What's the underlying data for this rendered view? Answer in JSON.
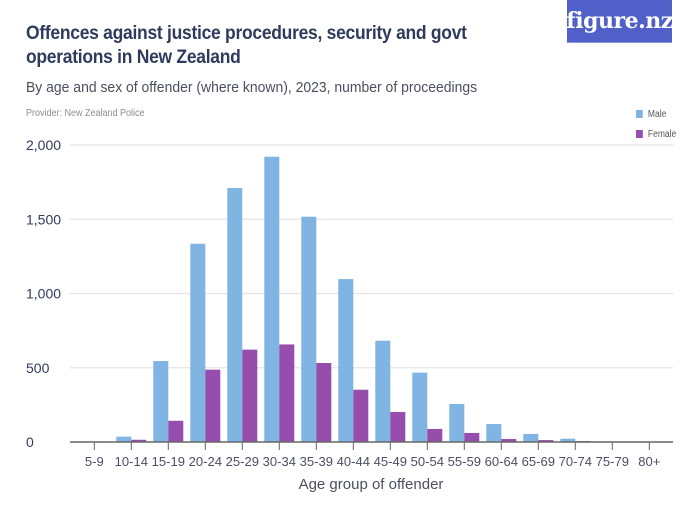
{
  "header": {
    "title": "Offences against justice procedures, security and govt operations in New Zealand",
    "subtitle": "By age and sex of offender (where known), 2023, number of proceedings",
    "provider": "Provider: New Zealand Police",
    "logo_text": "figure.nz"
  },
  "colors": {
    "male": "#7fb4e3",
    "female": "#974dab",
    "logo_bg": "#5160c8"
  },
  "chart_data": {
    "type": "bar",
    "xlabel": "Age group of offender",
    "ylabel": "",
    "ylim": [
      0,
      2000
    ],
    "yticks": [
      0,
      500,
      1000,
      1500,
      2000
    ],
    "ytick_labels": [
      "0",
      "500",
      "1,000",
      "1,500",
      "2,000"
    ],
    "grid": true,
    "legend_position": "top-right",
    "categories": [
      "5-9",
      "10-14",
      "15-19",
      "20-24",
      "25-29",
      "30-34",
      "35-39",
      "40-44",
      "45-49",
      "50-54",
      "55-59",
      "60-64",
      "65-69",
      "70-74",
      "75-79",
      "80+"
    ],
    "series": [
      {
        "name": "Male",
        "values": [
          0,
          36,
          545,
          1335,
          1710,
          1921,
          1517,
          1097,
          682,
          467,
          256,
          121,
          54,
          22,
          4,
          0
        ]
      },
      {
        "name": "Female",
        "values": [
          0,
          15,
          143,
          487,
          622,
          657,
          532,
          352,
          202,
          88,
          61,
          20,
          13,
          6,
          0,
          0
        ]
      }
    ]
  }
}
